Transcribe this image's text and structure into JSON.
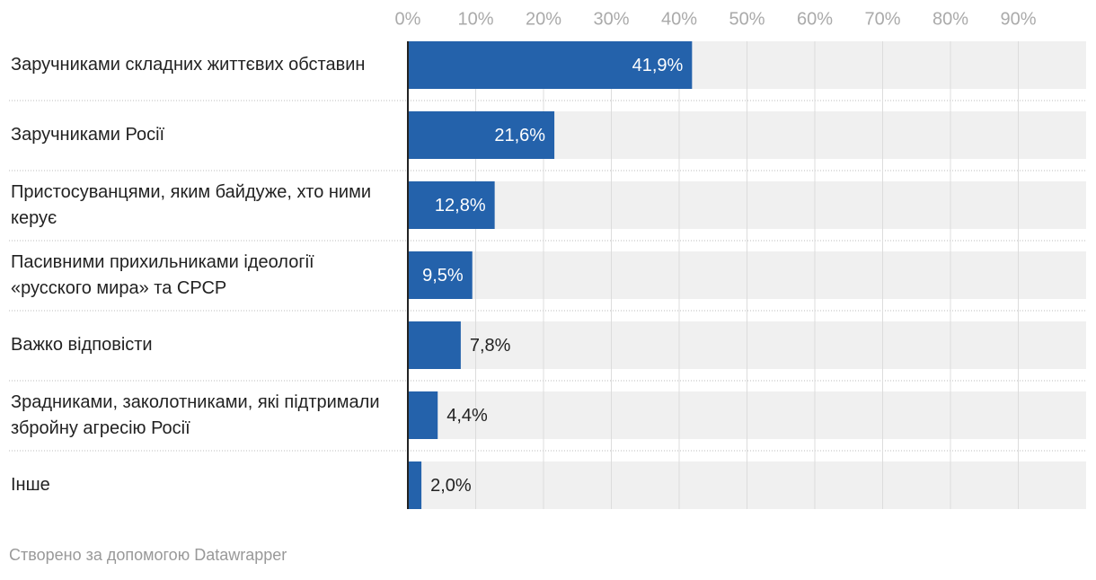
{
  "chart_data": {
    "type": "bar",
    "categories": [
      "Заручниками складних життєвих обставин",
      "Заручниками Росії",
      "Пристосуванцями, яким байдуже, хто ними керує",
      "Пасивними прихильниками ідеології «русского мира» та СРСР",
      "Важко відповісти",
      "Зрадниками, заколотниками, які підтримали збройну агресію Росії",
      "Інше"
    ],
    "values": [
      41.9,
      21.6,
      12.8,
      9.5,
      7.8,
      4.4,
      2.0
    ],
    "value_labels": [
      "41,9%",
      "21,6%",
      "12,8%",
      "9,5%",
      "7,8%",
      "4,4%",
      "2,0%"
    ],
    "color": "#2462ab",
    "xlim": [
      0,
      100
    ],
    "xticks": [
      {
        "value": 0,
        "label": "0%"
      },
      {
        "value": 10,
        "label": "10%"
      },
      {
        "value": 20,
        "label": "20%"
      },
      {
        "value": 30,
        "label": "30%"
      },
      {
        "value": 40,
        "label": "40%"
      },
      {
        "value": 50,
        "label": "50%"
      },
      {
        "value": 60,
        "label": "60%"
      },
      {
        "value": 70,
        "label": "70%"
      },
      {
        "value": 80,
        "label": "80%"
      },
      {
        "value": 90,
        "label": "90%"
      }
    ],
    "grid": true,
    "footer": "Створено за допомогою Datawrapper"
  }
}
